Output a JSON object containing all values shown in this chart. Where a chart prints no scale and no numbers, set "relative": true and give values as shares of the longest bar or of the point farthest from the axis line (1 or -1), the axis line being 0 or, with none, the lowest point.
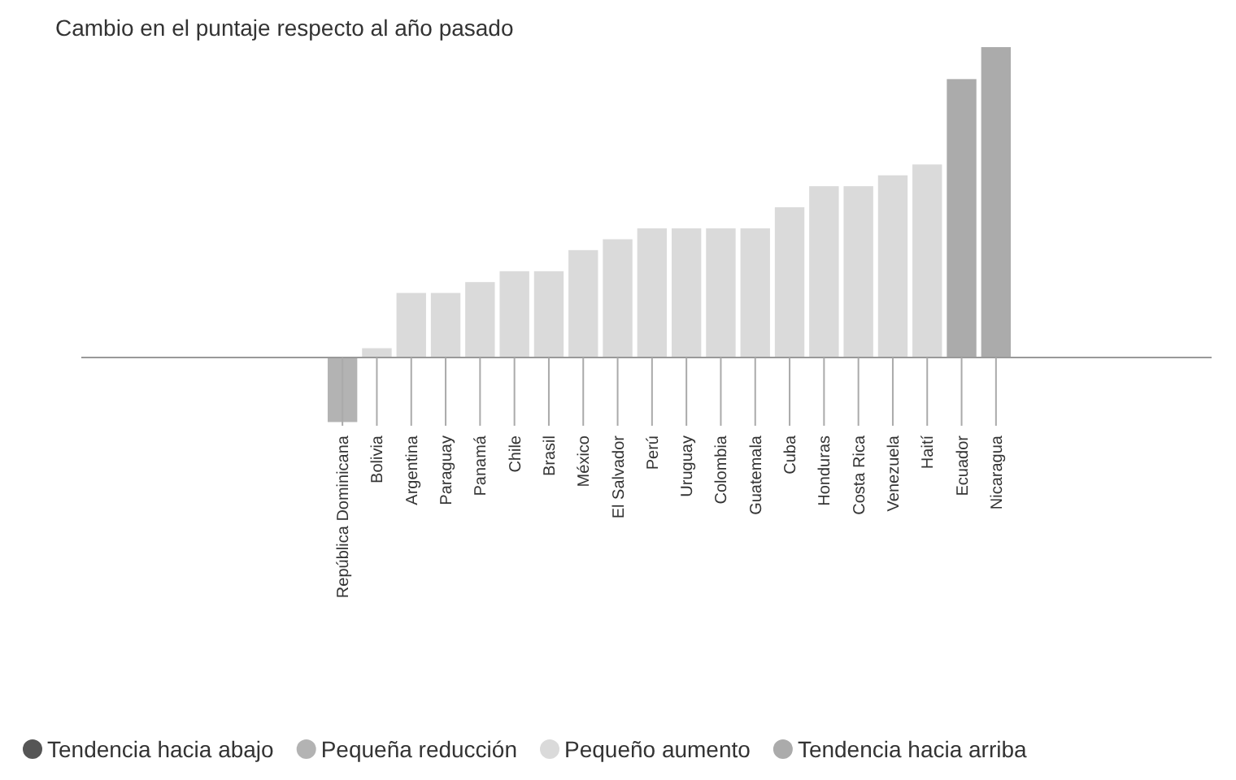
{
  "chart_data": {
    "type": "bar",
    "title": "Cambio en el puntaje respecto al año pasado",
    "relative": true,
    "legend": "bottom",
    "categories": [
      "República Dominicana",
      "Bolivia",
      "Argentina",
      "Paraguay",
      "Panamá",
      "Chile",
      "Brasil",
      "México",
      "El Salvador",
      "Perú",
      "Uruguay",
      "Colombia",
      "Guatemala",
      "Cuba",
      "Honduras",
      "Costa Rica",
      "Venezuela",
      "Haití",
      "Ecuador",
      "Nicaragua"
    ],
    "series": [
      {
        "name": "Tendencia hacia abajo",
        "color": "#555555",
        "values": [
          null,
          null,
          null,
          null,
          null,
          null,
          null,
          null,
          null,
          null,
          null,
          null,
          null,
          null,
          null,
          null,
          null,
          null,
          null,
          null
        ]
      },
      {
        "name": "Pequeña reducción",
        "color": "#b3b3b3",
        "values": [
          -0.208,
          null,
          null,
          null,
          null,
          null,
          null,
          null,
          null,
          null,
          null,
          null,
          null,
          null,
          null,
          null,
          null,
          null,
          null,
          null
        ]
      },
      {
        "name": "Pequeño aumento",
        "color": "#dadada",
        "values": [
          null,
          0.03,
          0.208,
          0.208,
          0.243,
          0.278,
          0.278,
          0.346,
          0.381,
          0.416,
          0.416,
          0.416,
          0.416,
          0.484,
          0.552,
          0.552,
          0.587,
          0.622,
          null,
          null
        ]
      },
      {
        "name": "Tendencia hacia arriba",
        "color": "#ababab",
        "values": [
          null,
          null,
          null,
          null,
          null,
          null,
          null,
          null,
          null,
          null,
          null,
          null,
          null,
          null,
          null,
          null,
          null,
          null,
          0.897,
          1
        ]
      }
    ]
  }
}
